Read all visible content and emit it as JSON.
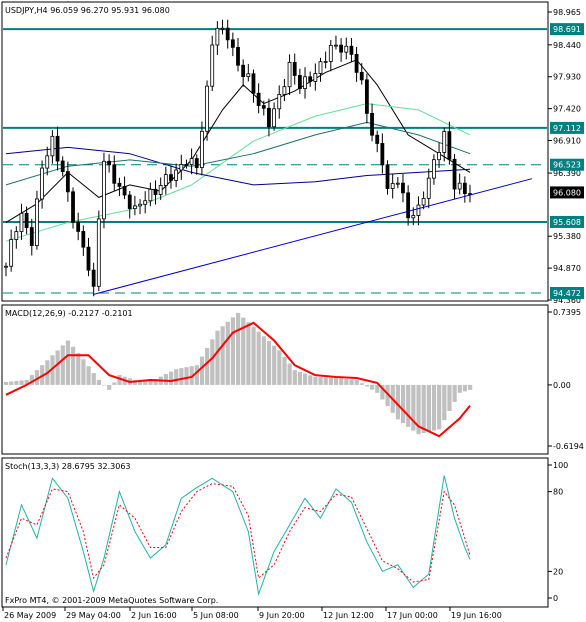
{
  "chart_data": [
    {
      "type": "candlestick",
      "header": {
        "symbol": "USDJPY,H4",
        "open": "96.059",
        "high": "96.270",
        "low": "95.931",
        "close": "96.080"
      },
      "price_ticks": [
        "98.965",
        "98.440",
        "97.930",
        "97.420",
        "96.910",
        "96.390",
        "95.380",
        "94.870",
        "94.360"
      ],
      "ylim": [
        94.36,
        98.965
      ],
      "levels": [
        {
          "label": "98.691",
          "value": 98.691,
          "style": "solid",
          "color": "#008080"
        },
        {
          "label": "97.112",
          "value": 97.112,
          "style": "solid",
          "color": "#008080"
        },
        {
          "label": "96.523",
          "value": 96.523,
          "style": "dashed",
          "color": "#008080"
        },
        {
          "label": "95.608",
          "value": 95.608,
          "style": "solid",
          "color": "#008080"
        },
        {
          "label": "94.472",
          "value": 94.472,
          "style": "dashed",
          "color": "#008080"
        }
      ],
      "current_price": {
        "label": "96.080",
        "value": 96.08
      },
      "close_series": [
        {
          "d": 0,
          "c": 94.9
        },
        {
          "d": 1.5,
          "c": 95.45
        },
        {
          "d": 3,
          "c": 95.7
        },
        {
          "d": 5,
          "c": 95.3
        },
        {
          "d": 7,
          "c": 96.5
        },
        {
          "d": 9,
          "c": 96.9
        },
        {
          "d": 11,
          "c": 96.4
        },
        {
          "d": 13.5,
          "c": 95.5
        },
        {
          "d": 15,
          "c": 95.2
        },
        {
          "d": 16,
          "c": 94.9
        },
        {
          "d": 17,
          "c": 94.5
        },
        {
          "d": 18,
          "c": 95.7
        },
        {
          "d": 19,
          "c": 96.6
        },
        {
          "d": 21,
          "c": 96.3
        },
        {
          "d": 23,
          "c": 96.0
        },
        {
          "d": 25,
          "c": 95.8
        },
        {
          "d": 27,
          "c": 96.0
        },
        {
          "d": 29,
          "c": 96.1
        },
        {
          "d": 31,
          "c": 96.3
        },
        {
          "d": 33,
          "c": 96.4
        },
        {
          "d": 35,
          "c": 96.6
        },
        {
          "d": 37,
          "c": 96.5
        },
        {
          "d": 39,
          "c": 97.7
        },
        {
          "d": 40,
          "c": 98.5
        },
        {
          "d": 41,
          "c": 98.7
        },
        {
          "d": 43,
          "c": 98.6
        },
        {
          "d": 45,
          "c": 98.1
        },
        {
          "d": 47,
          "c": 97.9
        },
        {
          "d": 49,
          "c": 97.5
        },
        {
          "d": 51,
          "c": 97.2
        },
        {
          "d": 53,
          "c": 97.6
        },
        {
          "d": 55,
          "c": 98.1
        },
        {
          "d": 57,
          "c": 97.8
        },
        {
          "d": 59,
          "c": 97.9
        },
        {
          "d": 61,
          "c": 98.1
        },
        {
          "d": 63,
          "c": 98.4
        },
        {
          "d": 65,
          "c": 98.4
        },
        {
          "d": 67,
          "c": 98.3
        },
        {
          "d": 69,
          "c": 97.8
        },
        {
          "d": 71,
          "c": 97.0
        },
        {
          "d": 73,
          "c": 96.6
        },
        {
          "d": 74,
          "c": 96.1
        },
        {
          "d": 76,
          "c": 96.3
        },
        {
          "d": 78,
          "c": 95.7
        },
        {
          "d": 80,
          "c": 95.8
        },
        {
          "d": 82,
          "c": 96.3
        },
        {
          "d": 84,
          "c": 96.8
        },
        {
          "d": 85,
          "c": 97.0
        },
        {
          "d": 86,
          "c": 96.6
        },
        {
          "d": 87,
          "c": 96.2
        },
        {
          "d": 89,
          "c": 96.1
        },
        {
          "d": 90,
          "c": 96.08
        }
      ],
      "moving_averages": [
        {
          "name": "",
          "color": "#000000",
          "points": [
            {
              "d": 0,
              "v": 95.6
            },
            {
              "d": 6,
              "v": 95.9
            },
            {
              "d": 12,
              "v": 96.4
            },
            {
              "d": 18,
              "v": 96.0
            },
            {
              "d": 24,
              "v": 96.2
            },
            {
              "d": 30,
              "v": 96.1
            },
            {
              "d": 36,
              "v": 96.6
            },
            {
              "d": 42,
              "v": 97.4
            },
            {
              "d": 46,
              "v": 97.8
            },
            {
              "d": 50,
              "v": 97.5
            },
            {
              "d": 56,
              "v": 97.7
            },
            {
              "d": 62,
              "v": 98.0
            },
            {
              "d": 68,
              "v": 98.2
            },
            {
              "d": 72,
              "v": 97.8
            },
            {
              "d": 78,
              "v": 97.0
            },
            {
              "d": 84,
              "v": 96.7
            },
            {
              "d": 90,
              "v": 96.4
            }
          ]
        },
        {
          "name": "",
          "color": "#66dd99",
          "points": [
            {
              "d": 0,
              "v": 95.3
            },
            {
              "d": 12,
              "v": 95.6
            },
            {
              "d": 24,
              "v": 95.8
            },
            {
              "d": 36,
              "v": 96.2
            },
            {
              "d": 48,
              "v": 96.9
            },
            {
              "d": 60,
              "v": 97.3
            },
            {
              "d": 70,
              "v": 97.5
            },
            {
              "d": 80,
              "v": 97.4
            },
            {
              "d": 90,
              "v": 97.0
            }
          ]
        },
        {
          "name": "",
          "color": "#00008b",
          "points": [
            {
              "d": 0,
              "v": 96.7
            },
            {
              "d": 12,
              "v": 96.8
            },
            {
              "d": 24,
              "v": 96.7
            },
            {
              "d": 36,
              "v": 96.4
            },
            {
              "d": 48,
              "v": 96.2
            },
            {
              "d": 60,
              "v": 96.25
            },
            {
              "d": 70,
              "v": 96.35
            },
            {
              "d": 80,
              "v": 96.4
            },
            {
              "d": 90,
              "v": 96.45
            }
          ]
        },
        {
          "name": "",
          "color": "#1f6f6f",
          "points": [
            {
              "d": 0,
              "v": 96.2
            },
            {
              "d": 12,
              "v": 96.5
            },
            {
              "d": 24,
              "v": 96.6
            },
            {
              "d": 36,
              "v": 96.5
            },
            {
              "d": 48,
              "v": 96.7
            },
            {
              "d": 60,
              "v": 97.0
            },
            {
              "d": 70,
              "v": 97.2
            },
            {
              "d": 80,
              "v": 97.0
            },
            {
              "d": 90,
              "v": 96.7
            }
          ]
        }
      ],
      "trendline": {
        "color": "#0000cd",
        "from": {
          "d": 17,
          "v": 94.45
        },
        "to": {
          "d": 102,
          "v": 96.3
        }
      }
    },
    {
      "type": "histogram",
      "label": "MACD(12,26,9) -0.2127 -0.2101",
      "ticks": [
        "0.7395",
        "0.00",
        "-0.6194"
      ],
      "ylim": [
        -0.6194,
        0.7395
      ],
      "signal_color": "#ff0000",
      "histogram_color": "#c0c0c0",
      "histogram": [
        {
          "d": 0,
          "v": 0.03
        },
        {
          "d": 4,
          "v": 0.05
        },
        {
          "d": 8,
          "v": 0.25
        },
        {
          "d": 12,
          "v": 0.45
        },
        {
          "d": 15,
          "v": 0.26
        },
        {
          "d": 18,
          "v": 0.05
        },
        {
          "d": 20,
          "v": -0.05
        },
        {
          "d": 22,
          "v": 0.1
        },
        {
          "d": 25,
          "v": 0.05
        },
        {
          "d": 29,
          "v": 0.06
        },
        {
          "d": 33,
          "v": 0.16
        },
        {
          "d": 37,
          "v": 0.2
        },
        {
          "d": 41,
          "v": 0.55
        },
        {
          "d": 45,
          "v": 0.73
        },
        {
          "d": 49,
          "v": 0.54
        },
        {
          "d": 53,
          "v": 0.35
        },
        {
          "d": 56,
          "v": 0.15
        },
        {
          "d": 60,
          "v": 0.08
        },
        {
          "d": 64,
          "v": 0.07
        },
        {
          "d": 68,
          "v": 0.05
        },
        {
          "d": 72,
          "v": -0.08
        },
        {
          "d": 76,
          "v": -0.35
        },
        {
          "d": 80,
          "v": -0.5
        },
        {
          "d": 84,
          "v": -0.45
        },
        {
          "d": 88,
          "v": -0.08
        },
        {
          "d": 90,
          "v": -0.05
        }
      ],
      "signal": [
        {
          "d": 0,
          "v": -0.1
        },
        {
          "d": 4,
          "v": 0.0
        },
        {
          "d": 8,
          "v": 0.12
        },
        {
          "d": 12,
          "v": 0.3
        },
        {
          "d": 16,
          "v": 0.3
        },
        {
          "d": 20,
          "v": 0.1
        },
        {
          "d": 24,
          "v": 0.03
        },
        {
          "d": 28,
          "v": 0.05
        },
        {
          "d": 32,
          "v": 0.04
        },
        {
          "d": 36,
          "v": 0.08
        },
        {
          "d": 40,
          "v": 0.27
        },
        {
          "d": 44,
          "v": 0.53
        },
        {
          "d": 48,
          "v": 0.63
        },
        {
          "d": 52,
          "v": 0.45
        },
        {
          "d": 56,
          "v": 0.2
        },
        {
          "d": 60,
          "v": 0.1
        },
        {
          "d": 64,
          "v": 0.08
        },
        {
          "d": 68,
          "v": 0.07
        },
        {
          "d": 72,
          "v": 0.02
        },
        {
          "d": 76,
          "v": -0.2
        },
        {
          "d": 80,
          "v": -0.42
        },
        {
          "d": 84,
          "v": -0.52
        },
        {
          "d": 88,
          "v": -0.34
        },
        {
          "d": 90,
          "v": -0.21
        }
      ]
    },
    {
      "type": "line",
      "label": "Stoch(13,3,3) 28.6795 32.3063",
      "ticks": [
        "100",
        "80",
        "20",
        "0"
      ],
      "ylim": [
        0,
        100
      ],
      "series": [
        {
          "name": "",
          "color": "#20b2aa",
          "style": "solid",
          "values": [
            {
              "d": 0,
              "v": 25
            },
            {
              "d": 3,
              "v": 70
            },
            {
              "d": 6,
              "v": 45
            },
            {
              "d": 9,
              "v": 90
            },
            {
              "d": 12,
              "v": 75
            },
            {
              "d": 15,
              "v": 35
            },
            {
              "d": 17,
              "v": 5
            },
            {
              "d": 19,
              "v": 30
            },
            {
              "d": 22,
              "v": 80
            },
            {
              "d": 25,
              "v": 50
            },
            {
              "d": 28,
              "v": 30
            },
            {
              "d": 31,
              "v": 40
            },
            {
              "d": 34,
              "v": 75
            },
            {
              "d": 37,
              "v": 83
            },
            {
              "d": 40,
              "v": 90
            },
            {
              "d": 44,
              "v": 80
            },
            {
              "d": 47,
              "v": 50
            },
            {
              "d": 49,
              "v": 3
            },
            {
              "d": 52,
              "v": 35
            },
            {
              "d": 55,
              "v": 55
            },
            {
              "d": 58,
              "v": 75
            },
            {
              "d": 61,
              "v": 60
            },
            {
              "d": 64,
              "v": 82
            },
            {
              "d": 67,
              "v": 72
            },
            {
              "d": 70,
              "v": 42
            },
            {
              "d": 73,
              "v": 20
            },
            {
              "d": 76,
              "v": 25
            },
            {
              "d": 79,
              "v": 8
            },
            {
              "d": 82,
              "v": 18
            },
            {
              "d": 85,
              "v": 92
            },
            {
              "d": 87,
              "v": 60
            },
            {
              "d": 89,
              "v": 38
            },
            {
              "d": 90,
              "v": 29
            }
          ]
        },
        {
          "name": "",
          "color": "#ff0000",
          "style": "dashed",
          "values": [
            {
              "d": 0,
              "v": 30
            },
            {
              "d": 3,
              "v": 60
            },
            {
              "d": 6,
              "v": 55
            },
            {
              "d": 9,
              "v": 82
            },
            {
              "d": 12,
              "v": 80
            },
            {
              "d": 15,
              "v": 50
            },
            {
              "d": 17,
              "v": 15
            },
            {
              "d": 19,
              "v": 25
            },
            {
              "d": 22,
              "v": 70
            },
            {
              "d": 25,
              "v": 60
            },
            {
              "d": 28,
              "v": 38
            },
            {
              "d": 31,
              "v": 38
            },
            {
              "d": 34,
              "v": 65
            },
            {
              "d": 37,
              "v": 80
            },
            {
              "d": 40,
              "v": 86
            },
            {
              "d": 44,
              "v": 84
            },
            {
              "d": 47,
              "v": 62
            },
            {
              "d": 49,
              "v": 15
            },
            {
              "d": 52,
              "v": 25
            },
            {
              "d": 55,
              "v": 50
            },
            {
              "d": 58,
              "v": 68
            },
            {
              "d": 61,
              "v": 65
            },
            {
              "d": 64,
              "v": 78
            },
            {
              "d": 67,
              "v": 76
            },
            {
              "d": 70,
              "v": 52
            },
            {
              "d": 73,
              "v": 28
            },
            {
              "d": 76,
              "v": 22
            },
            {
              "d": 79,
              "v": 12
            },
            {
              "d": 82,
              "v": 14
            },
            {
              "d": 85,
              "v": 80
            },
            {
              "d": 87,
              "v": 70
            },
            {
              "d": 89,
              "v": 45
            },
            {
              "d": 90,
              "v": 32
            }
          ]
        }
      ]
    }
  ],
  "time_axis": [
    "26 May 2009",
    "29 May 04:00",
    "2 Jun 16:00",
    "5 Jun 08:00",
    "9 Jun 20:00",
    "12 Jun 12:00",
    "17 Jun 00:00",
    "19 Jun 16:00"
  ],
  "copyright": "FxPro MT4, © 2001-2009 MetaQuotes Software Corp."
}
